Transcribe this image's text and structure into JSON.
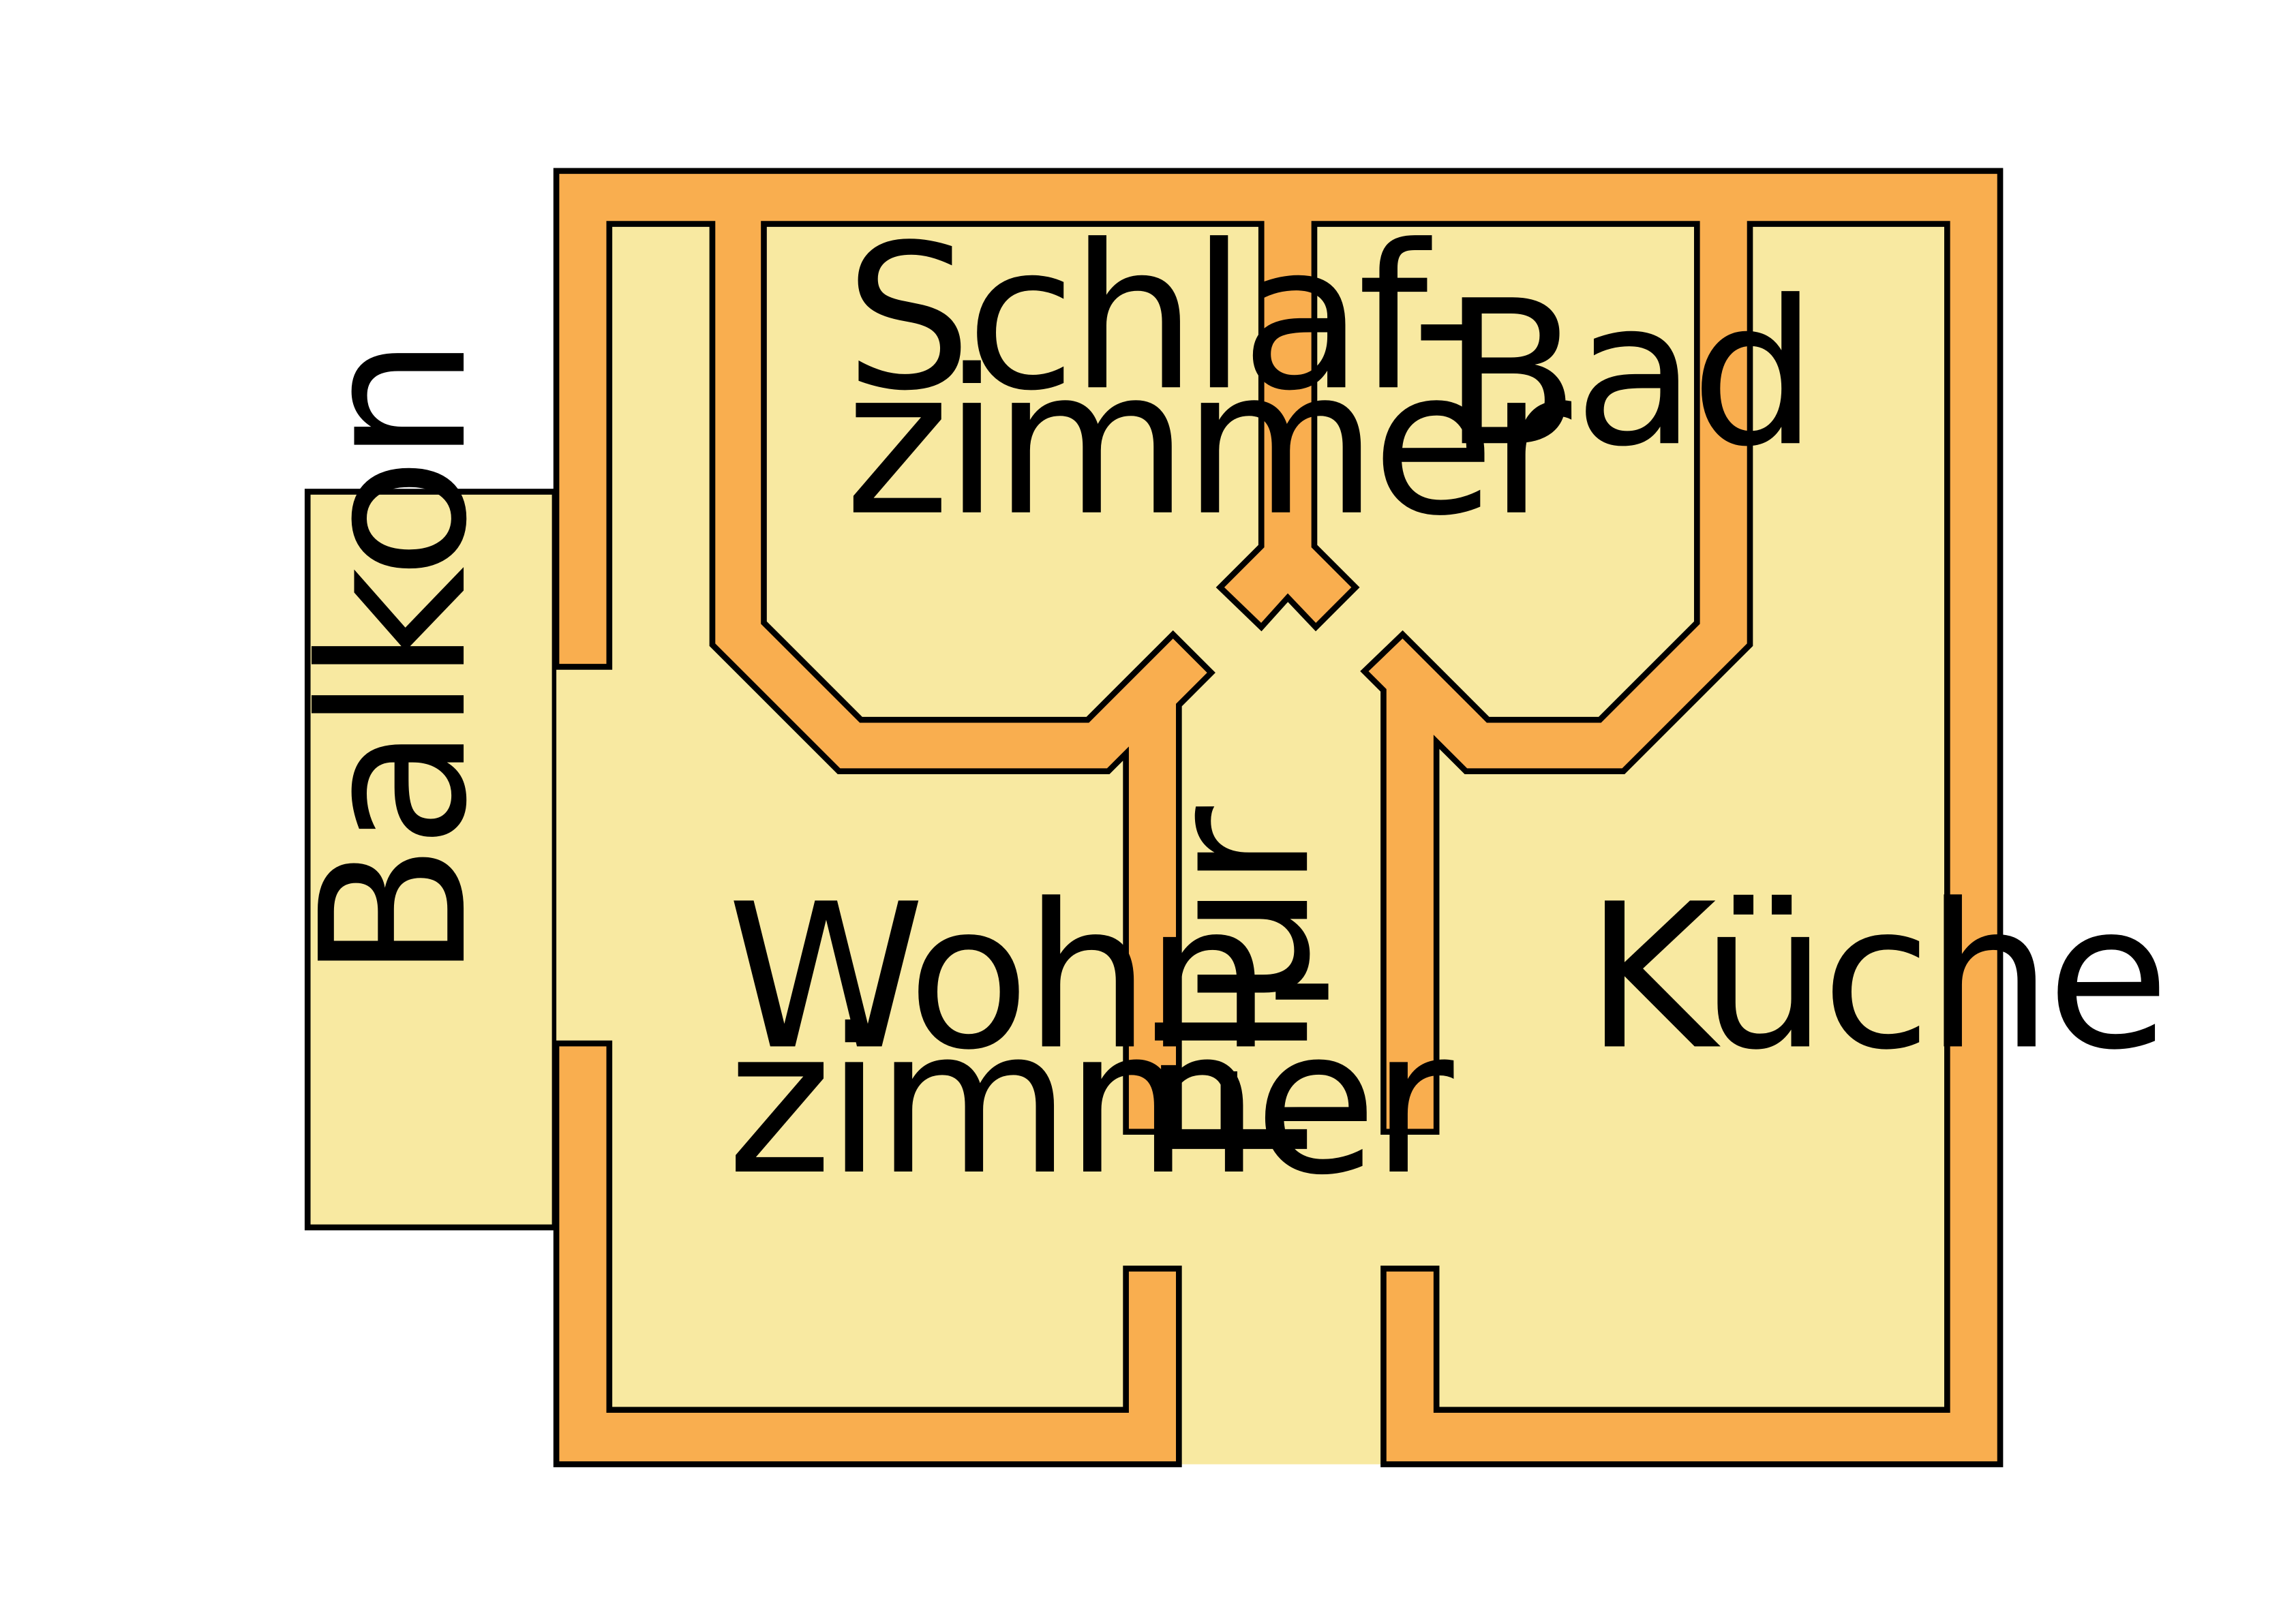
{
  "floor_plan": {
    "colors": {
      "floor": "#f8e9a1",
      "wall": "#f9ae4f",
      "outline": "#000000",
      "background": "#ffffff"
    },
    "rooms": {
      "schlafzimmer": {
        "line1": "Schlaf-",
        "line2": "zimmer"
      },
      "bad": {
        "label": "Bad"
      },
      "wohnzimmer": {
        "line1": "Wohn-",
        "line2": "zimmer"
      },
      "kueche": {
        "label": "Küche"
      },
      "flur": {
        "label": "Flur"
      },
      "balkon": {
        "label": "Balkon"
      }
    }
  }
}
